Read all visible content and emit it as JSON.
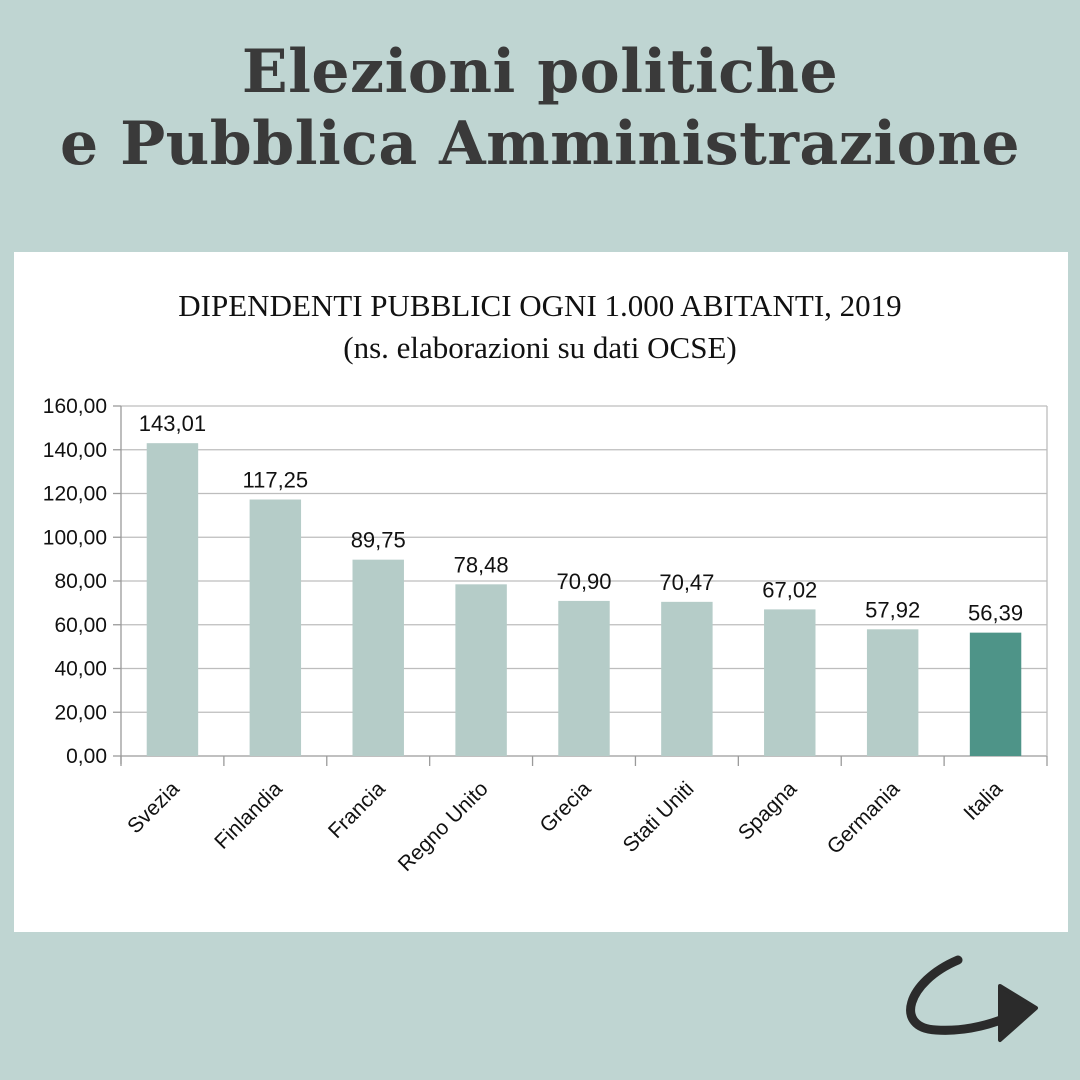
{
  "header": {
    "line1": "Elezioni politiche",
    "line2": "e Pubblica Amministrazione"
  },
  "chart_data": {
    "type": "bar",
    "title": "DIPENDENTI PUBBLICI OGNI 1.000 ABITANTI, 2019",
    "subtitle": "(ns. elaborazioni su dati OCSE)",
    "categories": [
      "Svezia",
      "Finlandia",
      "Francia",
      "Regno Unito",
      "Grecia",
      "Stati Uniti",
      "Spagna",
      "Germania",
      "Italia"
    ],
    "values": [
      143.01,
      117.25,
      89.75,
      78.48,
      70.9,
      70.47,
      67.02,
      57.92,
      56.39
    ],
    "value_labels": [
      "143,01",
      "117,25",
      "89,75",
      "78,48",
      "70,90",
      "70,47",
      "67,02",
      "57,92",
      "56,39"
    ],
    "yticks": [
      0,
      20,
      40,
      60,
      80,
      100,
      120,
      140,
      160
    ],
    "ytick_labels": [
      "0,00",
      "20,00",
      "40,00",
      "60,00",
      "80,00",
      "100,00",
      "120,00",
      "140,00",
      "160,00"
    ],
    "ylim": [
      0,
      160
    ],
    "xlabel": "",
    "ylabel": "",
    "grid": true,
    "colors": {
      "bar": "#b5ccc8",
      "highlight": "#4e9488",
      "highlight_category": "Italia"
    }
  },
  "nav": {
    "next_icon": "curved-arrow-right-icon",
    "icon_color": "#2b2b2b"
  }
}
